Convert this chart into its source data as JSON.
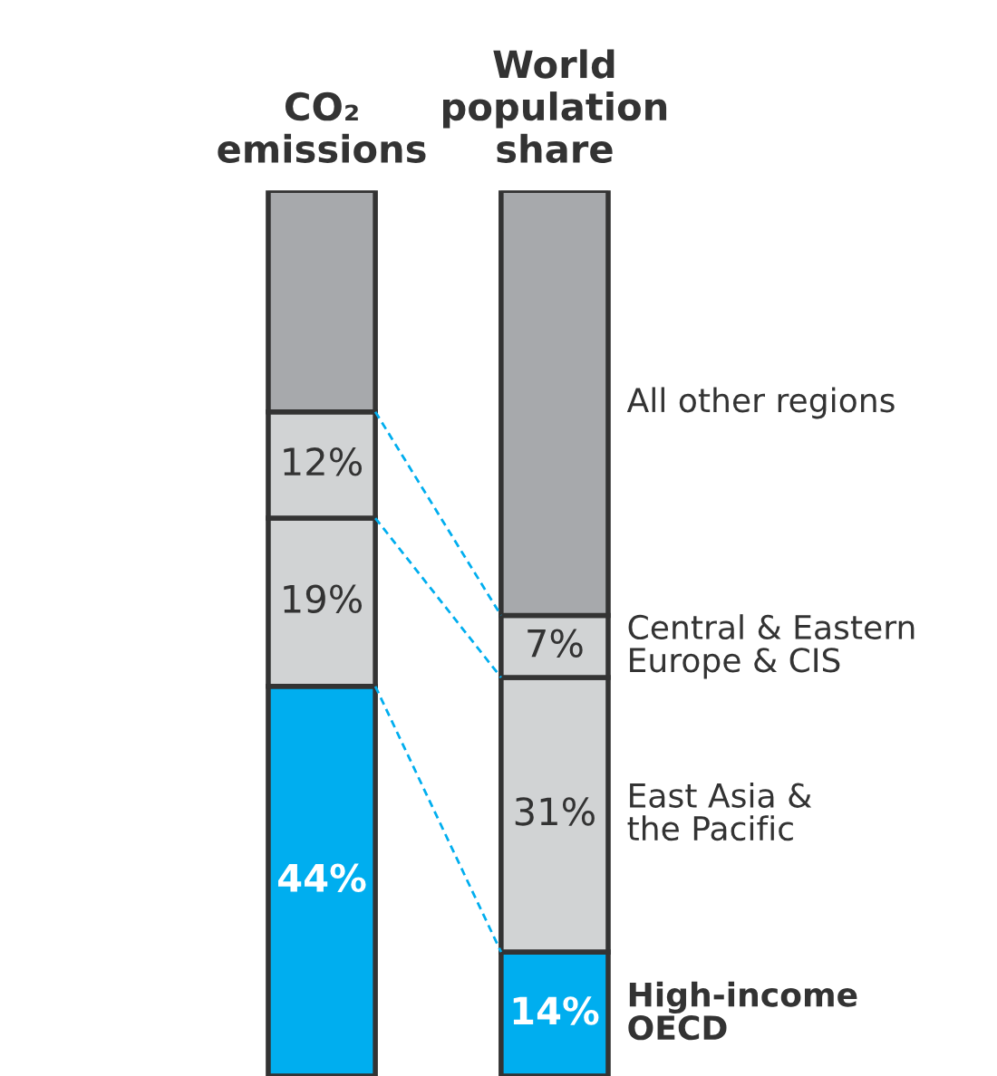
{
  "chart_data": {
    "type": "bar",
    "stacked": true,
    "categories": [
      "CO₂ emissions",
      "World population share"
    ],
    "ylim": [
      0,
      100
    ],
    "tick_labels": "x",
    "series": [
      {
        "name": "High-income OECD",
        "color": "#00aeef",
        "values": [
          44,
          14
        ],
        "value_labels": [
          "44%",
          "14%"
        ]
      },
      {
        "name": "East Asia & the Pacific",
        "color": "#d1d3d4",
        "values": [
          19,
          31
        ],
        "value_labels": [
          "19%",
          "31%"
        ]
      },
      {
        "name": "Central & Eastern Europe & CIS",
        "color": "#d1d3d4",
        "values": [
          12,
          7
        ],
        "value_labels": [
          "12%",
          "7%"
        ]
      },
      {
        "name": "All other regions",
        "color": "#a7a9ac",
        "values": [
          25,
          48
        ],
        "value_labels": [
          null,
          null
        ]
      }
    ]
  }
}
